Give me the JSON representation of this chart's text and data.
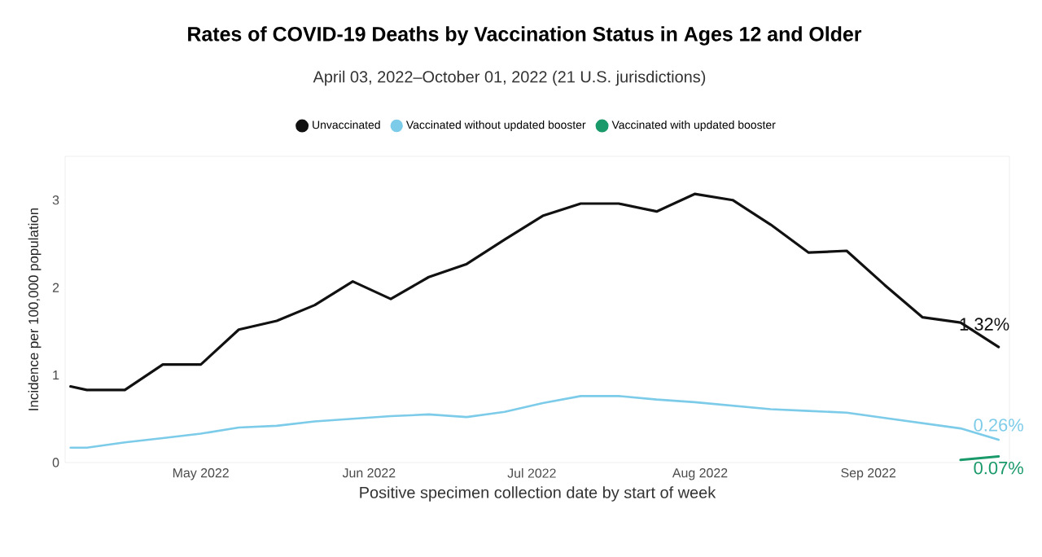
{
  "chart_data": {
    "type": "line",
    "title": "Rates of COVID-19 Deaths by Vaccination Status in Ages 12 and Older",
    "subtitle": "April 03, 2022–October 01, 2022 (21 U.S. jurisdictions)",
    "xlabel": "Positive specimen collection date by start of week",
    "ylabel": "Incidence per 100,000 population",
    "x": [
      "2022-04-07",
      "2022-04-10",
      "2022-04-17",
      "2022-04-24",
      "2022-05-01",
      "2022-05-08",
      "2022-05-15",
      "2022-05-22",
      "2022-05-29",
      "2022-06-05",
      "2022-06-12",
      "2022-06-19",
      "2022-06-26",
      "2022-07-03",
      "2022-07-10",
      "2022-07-17",
      "2022-07-24",
      "2022-07-31",
      "2022-08-07",
      "2022-08-14",
      "2022-08-21",
      "2022-08-28",
      "2022-09-04",
      "2022-09-11",
      "2022-09-18",
      "2022-09-25"
    ],
    "series": [
      {
        "name": "Unvaccinated",
        "color": "#111111",
        "values": [
          0.87,
          0.83,
          0.83,
          1.12,
          1.12,
          1.52,
          1.62,
          1.8,
          2.07,
          1.87,
          2.12,
          2.27,
          2.55,
          2.82,
          2.96,
          2.96,
          2.87,
          3.07,
          3.0,
          2.72,
          2.4,
          2.42,
          2.03,
          1.66,
          1.6,
          1.32
        ],
        "value_labels": [
          null,
          null,
          null,
          null,
          null,
          null,
          null,
          null,
          null,
          null,
          null,
          null,
          null,
          null,
          null,
          null,
          null,
          null,
          null,
          null,
          null,
          null,
          null,
          null,
          null,
          "1.32%"
        ]
      },
      {
        "name": "Vaccinated without updated booster",
        "color": "#7ccbe9",
        "values": [
          0.17,
          0.17,
          0.23,
          0.28,
          0.33,
          0.4,
          0.42,
          0.47,
          0.5,
          0.53,
          0.55,
          0.52,
          0.58,
          0.68,
          0.76,
          0.76,
          0.72,
          0.69,
          0.65,
          0.61,
          0.59,
          0.57,
          0.51,
          0.45,
          0.39,
          0.26
        ],
        "value_labels": [
          null,
          null,
          null,
          null,
          null,
          null,
          null,
          null,
          null,
          null,
          null,
          null,
          null,
          null,
          null,
          null,
          null,
          null,
          null,
          null,
          null,
          null,
          null,
          null,
          null,
          "0.26%"
        ]
      },
      {
        "name": "Vaccinated with updated booster",
        "color": "#1a9a6a",
        "values": [
          null,
          null,
          null,
          null,
          null,
          null,
          null,
          null,
          null,
          null,
          null,
          null,
          null,
          null,
          null,
          null,
          null,
          null,
          null,
          null,
          null,
          null,
          null,
          null,
          0.03,
          0.07
        ],
        "value_labels": [
          null,
          null,
          null,
          null,
          null,
          null,
          null,
          null,
          null,
          null,
          null,
          null,
          null,
          null,
          null,
          null,
          null,
          null,
          null,
          null,
          null,
          null,
          null,
          null,
          null,
          "0.07%"
        ]
      }
    ],
    "xticks": [
      {
        "value": "2022-05-01",
        "label": "May 2022"
      },
      {
        "value": "2022-06-01",
        "label": "Jun 2022"
      },
      {
        "value": "2022-07-01",
        "label": "Jul 2022"
      },
      {
        "value": "2022-08-01",
        "label": "Aug 2022"
      },
      {
        "value": "2022-09-01",
        "label": "Sep 2022"
      }
    ],
    "xlim": [
      "2022-04-06",
      "2022-09-27"
    ],
    "ylim": [
      0,
      3.5
    ],
    "yticks": [
      0,
      1,
      2,
      3
    ],
    "grid": false,
    "legend": "top"
  }
}
